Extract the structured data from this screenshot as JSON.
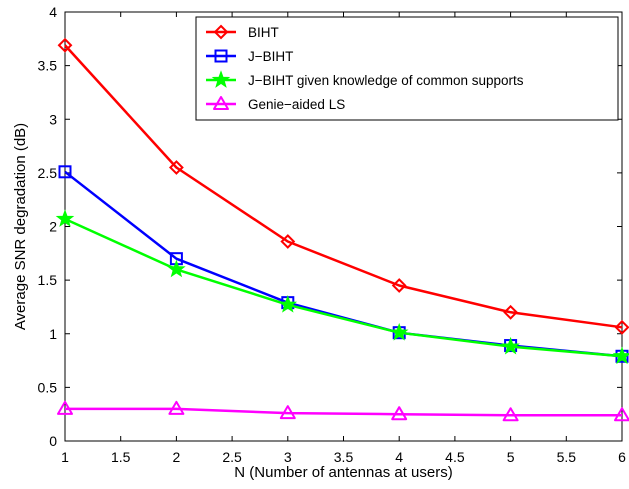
{
  "chart_data": {
    "type": "line",
    "title": "",
    "xlabel": "N (Number of antennas at users)",
    "ylabel": "Average SNR degradation (dB)",
    "xlim": [
      1,
      6
    ],
    "ylim": [
      0,
      4
    ],
    "xticks": [
      1,
      1.5,
      2,
      2.5,
      3,
      3.5,
      4,
      4.5,
      5,
      5.5,
      6
    ],
    "yticks": [
      0,
      0.5,
      1,
      1.5,
      2,
      2.5,
      3,
      3.5,
      4
    ],
    "xtick_labels": [
      "1",
      "1.5",
      "2",
      "2.5",
      "3",
      "3.5",
      "4",
      "4.5",
      "5",
      "5.5",
      "6"
    ],
    "ytick_labels": [
      "0",
      "0.5",
      "1",
      "1.5",
      "2",
      "2.5",
      "3",
      "3.5",
      "4"
    ],
    "grid": false,
    "legend_position": "top-right",
    "x": [
      1,
      2,
      3,
      4,
      5,
      6
    ],
    "series": [
      {
        "name": "BIHT",
        "color": "#ff0000",
        "marker": "diamond",
        "values": [
          3.69,
          2.55,
          1.86,
          1.45,
          1.2,
          1.06
        ]
      },
      {
        "name": "J−BIHT",
        "color": "#0000ff",
        "marker": "square",
        "values": [
          2.51,
          1.7,
          1.29,
          1.01,
          0.89,
          0.79
        ]
      },
      {
        "name": "J−BIHT given knowledge of common supports",
        "color": "#00ff00",
        "marker": "star",
        "values": [
          2.07,
          1.6,
          1.27,
          1.01,
          0.88,
          0.79
        ]
      },
      {
        "name": "Genie−aided LS",
        "color": "#ff00ff",
        "marker": "triangle",
        "values": [
          0.3,
          0.3,
          0.26,
          0.25,
          0.24,
          0.24
        ]
      }
    ]
  }
}
